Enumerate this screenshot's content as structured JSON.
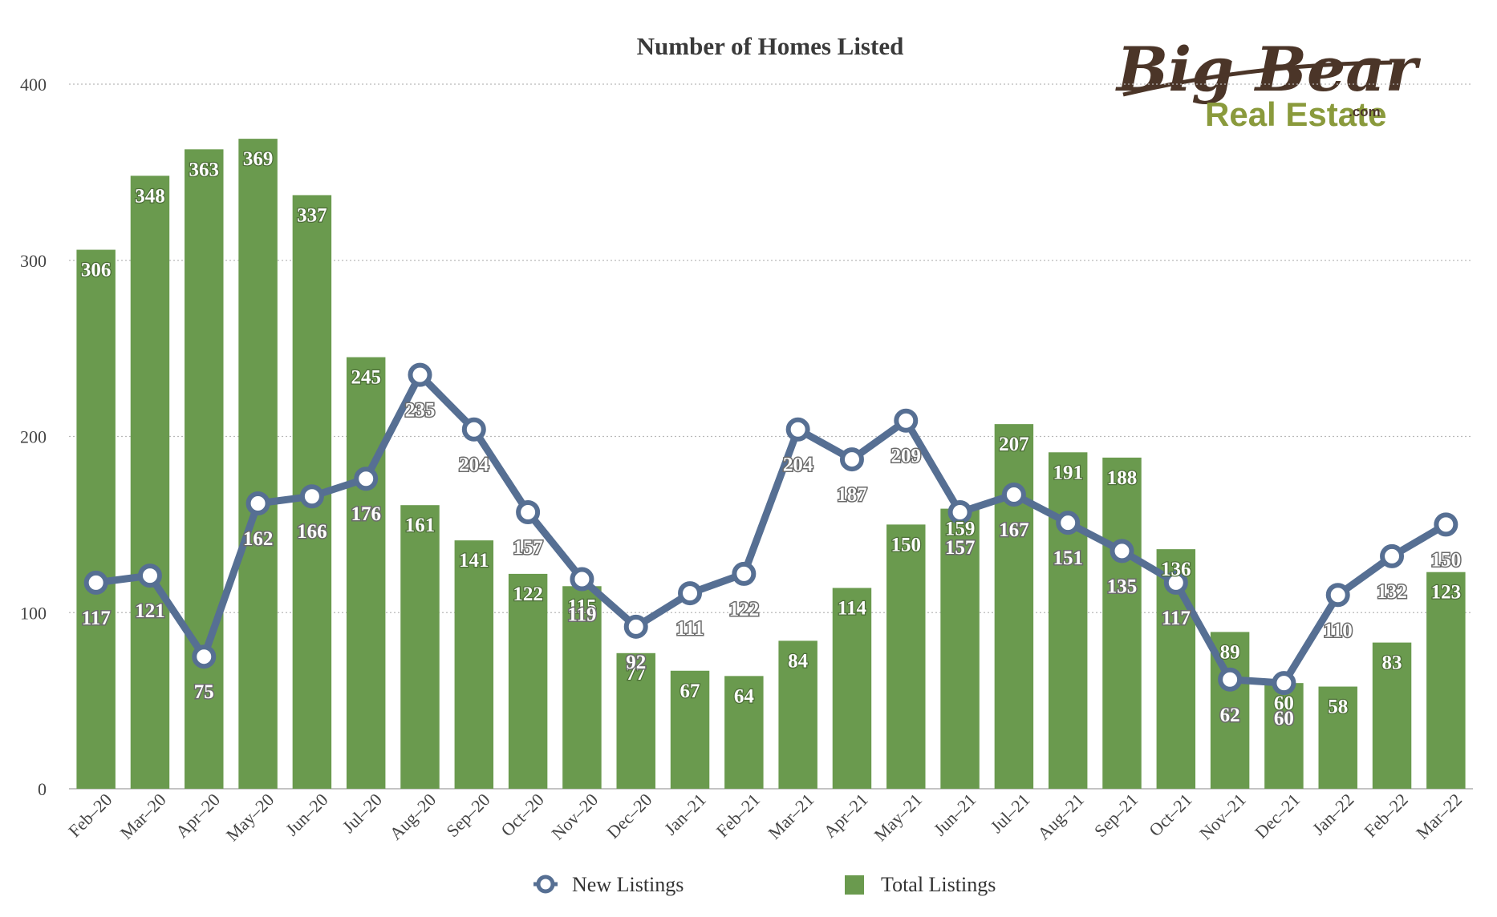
{
  "chart_data": {
    "type": "bar",
    "title": "Number of Homes Listed",
    "categories": [
      "Feb–20",
      "Mar–20",
      "Apr–20",
      "May–20",
      "Jun–20",
      "Jul–20",
      "Aug–20",
      "Sep–20",
      "Oct–20",
      "Nov–20",
      "Dec–20",
      "Jan–21",
      "Feb–21",
      "Mar–21",
      "Apr–21",
      "May–21",
      "Jun–21",
      "Jul–21",
      "Aug–21",
      "Sep–21",
      "Oct–21",
      "Nov–21",
      "Dec–21",
      "Jan–22",
      "Feb–22",
      "Mar–22"
    ],
    "series": [
      {
        "name": "Total Listings",
        "type": "bar",
        "color": "#6a9a4e",
        "values": [
          306,
          348,
          363,
          369,
          337,
          245,
          161,
          141,
          122,
          115,
          77,
          67,
          64,
          84,
          114,
          150,
          159,
          207,
          191,
          188,
          136,
          89,
          60,
          58,
          83,
          123
        ]
      },
      {
        "name": "New Listings",
        "type": "line",
        "color": "#566f93",
        "values": [
          117,
          121,
          75,
          162,
          166,
          176,
          235,
          204,
          157,
          119,
          92,
          111,
          122,
          204,
          187,
          209,
          157,
          167,
          151,
          135,
          117,
          62,
          60,
          110,
          132,
          150
        ]
      }
    ],
    "ylim": [
      0,
      400
    ],
    "yticks": [
      0,
      100,
      200,
      300,
      400
    ],
    "grid": true,
    "legend": "bottom"
  },
  "logo": {
    "line1": "Big Bear",
    "line2": "Real Estate",
    "suffix": ".com"
  }
}
